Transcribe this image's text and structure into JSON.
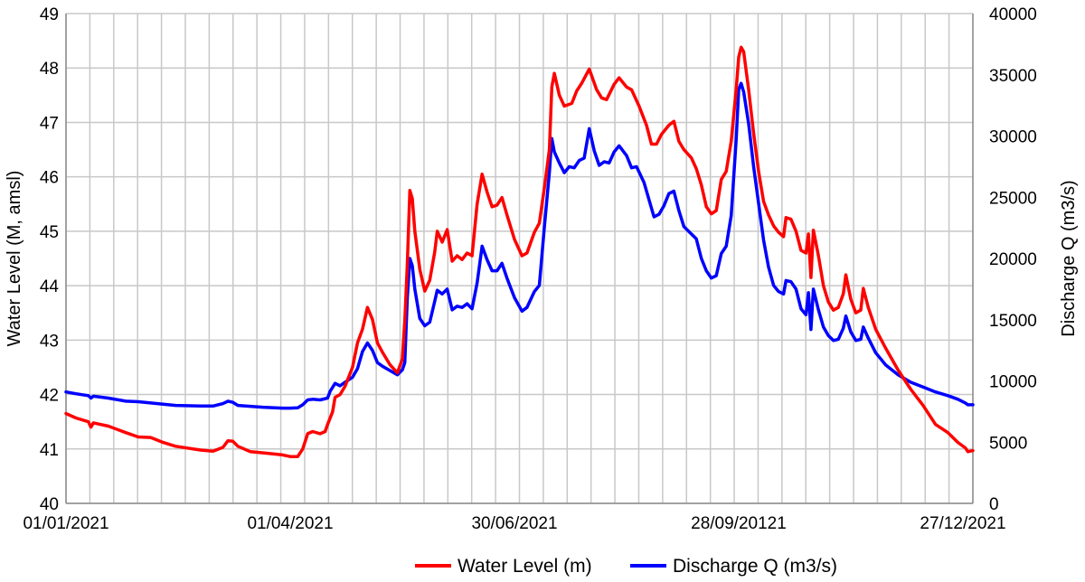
{
  "chart_data": {
    "type": "line",
    "title": "",
    "ylabel": "Water Level (M, amsl)",
    "y2label": "Discharge Q (m3/s)",
    "ylim": [
      40,
      49
    ],
    "y2lim": [
      0,
      40000
    ],
    "yticks": [
      "40",
      "41",
      "42",
      "43",
      "44",
      "45",
      "46",
      "47",
      "48",
      "49"
    ],
    "y2ticks": [
      "0",
      "5000",
      "10000",
      "15000",
      "20000",
      "25000",
      "30000",
      "35000",
      "40000"
    ],
    "xlim_day": [
      1,
      365
    ],
    "xtick_labels": [
      {
        "day": 1,
        "label": "01/01/2021"
      },
      {
        "day": 91,
        "label": "01/04/2021"
      },
      {
        "day": 181,
        "label": "30/06/2021"
      },
      {
        "day": 271,
        "label": "28/09/20121"
      },
      {
        "day": 361,
        "label": "27/12/2021"
      }
    ],
    "grid": true,
    "legend_position": "bottom",
    "series": [
      {
        "name": "Water Level (m)",
        "axis": "left",
        "color": "#ff0000",
        "points": [
          [
            1,
            41.65
          ],
          [
            5,
            41.57
          ],
          [
            10,
            41.5
          ],
          [
            11,
            41.4
          ],
          [
            12,
            41.48
          ],
          [
            18,
            41.42
          ],
          [
            25,
            41.3
          ],
          [
            30,
            41.22
          ],
          [
            35,
            41.21
          ],
          [
            40,
            41.12
          ],
          [
            45,
            41.05
          ],
          [
            55,
            40.98
          ],
          [
            60,
            40.96
          ],
          [
            64,
            41.03
          ],
          [
            66,
            41.15
          ],
          [
            68,
            41.14
          ],
          [
            70,
            41.05
          ],
          [
            75,
            40.95
          ],
          [
            82,
            40.92
          ],
          [
            88,
            40.89
          ],
          [
            91,
            40.86
          ],
          [
            94,
            40.86
          ],
          [
            96,
            41.0
          ],
          [
            98,
            41.28
          ],
          [
            100,
            41.32
          ],
          [
            103,
            41.28
          ],
          [
            105,
            41.32
          ],
          [
            106,
            41.45
          ],
          [
            108,
            41.68
          ],
          [
            109,
            41.95
          ],
          [
            111,
            42.0
          ],
          [
            113,
            42.15
          ],
          [
            116,
            42.5
          ],
          [
            118,
            42.95
          ],
          [
            120,
            43.2
          ],
          [
            122,
            43.6
          ],
          [
            124,
            43.38
          ],
          [
            126,
            42.95
          ],
          [
            128,
            42.78
          ],
          [
            131,
            42.55
          ],
          [
            134,
            42.4
          ],
          [
            136,
            42.65
          ],
          [
            137,
            43.35
          ],
          [
            138,
            44.4
          ],
          [
            139,
            45.75
          ],
          [
            140,
            45.6
          ],
          [
            141,
            45.0
          ],
          [
            143,
            44.3
          ],
          [
            145,
            43.9
          ],
          [
            147,
            44.1
          ],
          [
            149,
            44.62
          ],
          [
            150,
            45.0
          ],
          [
            152,
            44.8
          ],
          [
            154,
            45.03
          ],
          [
            156,
            44.45
          ],
          [
            158,
            44.55
          ],
          [
            160,
            44.48
          ],
          [
            162,
            44.6
          ],
          [
            164,
            44.55
          ],
          [
            166,
            45.5
          ],
          [
            168,
            46.05
          ],
          [
            170,
            45.72
          ],
          [
            172,
            45.45
          ],
          [
            174,
            45.48
          ],
          [
            176,
            45.62
          ],
          [
            178,
            45.3
          ],
          [
            181,
            44.85
          ],
          [
            184,
            44.55
          ],
          [
            186,
            44.6
          ],
          [
            189,
            44.98
          ],
          [
            191,
            45.15
          ],
          [
            193,
            45.8
          ],
          [
            195,
            46.5
          ],
          [
            196,
            47.65
          ],
          [
            197,
            47.9
          ],
          [
            199,
            47.5
          ],
          [
            201,
            47.3
          ],
          [
            204,
            47.35
          ],
          [
            206,
            47.58
          ],
          [
            208,
            47.72
          ],
          [
            211,
            47.98
          ],
          [
            214,
            47.6
          ],
          [
            216,
            47.45
          ],
          [
            218,
            47.42
          ],
          [
            221,
            47.7
          ],
          [
            223,
            47.82
          ],
          [
            226,
            47.65
          ],
          [
            228,
            47.6
          ],
          [
            231,
            47.3
          ],
          [
            234,
            46.95
          ],
          [
            236,
            46.6
          ],
          [
            238,
            46.6
          ],
          [
            240,
            46.78
          ],
          [
            243,
            46.95
          ],
          [
            245,
            47.02
          ],
          [
            247,
            46.65
          ],
          [
            249,
            46.5
          ],
          [
            252,
            46.35
          ],
          [
            254,
            46.15
          ],
          [
            256,
            45.85
          ],
          [
            258,
            45.45
          ],
          [
            260,
            45.32
          ],
          [
            262,
            45.38
          ],
          [
            264,
            45.95
          ],
          [
            266,
            46.1
          ],
          [
            268,
            46.65
          ],
          [
            270,
            47.6
          ],
          [
            271,
            48.2
          ],
          [
            272,
            48.38
          ],
          [
            273,
            48.3
          ],
          [
            275,
            47.6
          ],
          [
            277,
            46.8
          ],
          [
            279,
            46.1
          ],
          [
            281,
            45.55
          ],
          [
            283,
            45.3
          ],
          [
            285,
            45.1
          ],
          [
            287,
            44.98
          ],
          [
            289,
            44.9
          ],
          [
            290,
            45.25
          ],
          [
            292,
            45.22
          ],
          [
            294,
            45.0
          ],
          [
            296,
            44.65
          ],
          [
            298,
            44.6
          ],
          [
            299,
            44.95
          ],
          [
            300,
            44.15
          ],
          [
            301,
            45.02
          ],
          [
            303,
            44.55
          ],
          [
            305,
            44.0
          ],
          [
            307,
            43.7
          ],
          [
            309,
            43.55
          ],
          [
            311,
            43.6
          ],
          [
            313,
            43.85
          ],
          [
            314,
            44.2
          ],
          [
            316,
            43.75
          ],
          [
            318,
            43.5
          ],
          [
            320,
            43.55
          ],
          [
            321,
            43.95
          ],
          [
            323,
            43.6
          ],
          [
            326,
            43.2
          ],
          [
            330,
            42.85
          ],
          [
            335,
            42.45
          ],
          [
            340,
            42.1
          ],
          [
            345,
            41.8
          ],
          [
            350,
            41.45
          ],
          [
            355,
            41.3
          ],
          [
            359,
            41.12
          ],
          [
            362,
            41.02
          ],
          [
            363,
            40.95
          ],
          [
            365,
            40.97
          ]
        ]
      },
      {
        "name": "Discharge Q (m3/s)",
        "axis": "right",
        "color": "#0000ff",
        "points": [
          [
            1,
            9100
          ],
          [
            5,
            8950
          ],
          [
            10,
            8800
          ],
          [
            11,
            8600
          ],
          [
            12,
            8750
          ],
          [
            18,
            8600
          ],
          [
            25,
            8350
          ],
          [
            30,
            8300
          ],
          [
            35,
            8200
          ],
          [
            40,
            8100
          ],
          [
            45,
            8000
          ],
          [
            55,
            7950
          ],
          [
            60,
            7950
          ],
          [
            64,
            8150
          ],
          [
            66,
            8350
          ],
          [
            68,
            8250
          ],
          [
            70,
            8000
          ],
          [
            80,
            7850
          ],
          [
            88,
            7780
          ],
          [
            91,
            7780
          ],
          [
            94,
            7800
          ],
          [
            96,
            8050
          ],
          [
            98,
            8450
          ],
          [
            100,
            8500
          ],
          [
            103,
            8450
          ],
          [
            106,
            8600
          ],
          [
            107,
            9150
          ],
          [
            109,
            9800
          ],
          [
            111,
            9600
          ],
          [
            113,
            9900
          ],
          [
            116,
            10300
          ],
          [
            118,
            11000
          ],
          [
            120,
            12400
          ],
          [
            122,
            13100
          ],
          [
            124,
            12500
          ],
          [
            126,
            11500
          ],
          [
            128,
            11200
          ],
          [
            131,
            10850
          ],
          [
            134,
            10500
          ],
          [
            136,
            10900
          ],
          [
            137,
            11500
          ],
          [
            138,
            16800
          ],
          [
            139,
            20000
          ],
          [
            140,
            19400
          ],
          [
            141,
            17500
          ],
          [
            143,
            15100
          ],
          [
            145,
            14500
          ],
          [
            147,
            14800
          ],
          [
            149,
            16500
          ],
          [
            150,
            17400
          ],
          [
            152,
            17100
          ],
          [
            154,
            17500
          ],
          [
            156,
            15800
          ],
          [
            158,
            16100
          ],
          [
            160,
            16000
          ],
          [
            162,
            16300
          ],
          [
            164,
            15900
          ],
          [
            166,
            18000
          ],
          [
            168,
            21000
          ],
          [
            170,
            19900
          ],
          [
            172,
            19000
          ],
          [
            174,
            19000
          ],
          [
            176,
            19600
          ],
          [
            178,
            18400
          ],
          [
            181,
            16800
          ],
          [
            184,
            15700
          ],
          [
            186,
            16000
          ],
          [
            189,
            17300
          ],
          [
            191,
            17800
          ],
          [
            193,
            22600
          ],
          [
            195,
            27000
          ],
          [
            196,
            29800
          ],
          [
            197,
            28700
          ],
          [
            199,
            27800
          ],
          [
            201,
            27000
          ],
          [
            203,
            27500
          ],
          [
            205,
            27400
          ],
          [
            207,
            28000
          ],
          [
            209,
            28200
          ],
          [
            211,
            30600
          ],
          [
            213,
            28800
          ],
          [
            215,
            27600
          ],
          [
            217,
            27900
          ],
          [
            219,
            27800
          ],
          [
            221,
            28700
          ],
          [
            223,
            29200
          ],
          [
            226,
            28400
          ],
          [
            228,
            27400
          ],
          [
            230,
            27500
          ],
          [
            233,
            26200
          ],
          [
            235,
            24800
          ],
          [
            237,
            23400
          ],
          [
            239,
            23600
          ],
          [
            241,
            24300
          ],
          [
            243,
            25300
          ],
          [
            245,
            25500
          ],
          [
            247,
            23900
          ],
          [
            249,
            22600
          ],
          [
            252,
            22000
          ],
          [
            254,
            21600
          ],
          [
            256,
            20000
          ],
          [
            258,
            19000
          ],
          [
            260,
            18400
          ],
          [
            262,
            18600
          ],
          [
            264,
            20400
          ],
          [
            266,
            21000
          ],
          [
            268,
            23500
          ],
          [
            270,
            29700
          ],
          [
            271,
            33800
          ],
          [
            272,
            34300
          ],
          [
            273,
            33600
          ],
          [
            275,
            31000
          ],
          [
            277,
            27500
          ],
          [
            279,
            24500
          ],
          [
            281,
            21500
          ],
          [
            283,
            19300
          ],
          [
            285,
            17800
          ],
          [
            287,
            17300
          ],
          [
            289,
            17100
          ],
          [
            290,
            18200
          ],
          [
            292,
            18100
          ],
          [
            294,
            17500
          ],
          [
            296,
            15900
          ],
          [
            298,
            15400
          ],
          [
            299,
            17200
          ],
          [
            300,
            14200
          ],
          [
            301,
            17500
          ],
          [
            303,
            15800
          ],
          [
            305,
            14400
          ],
          [
            307,
            13700
          ],
          [
            309,
            13300
          ],
          [
            311,
            13400
          ],
          [
            313,
            14300
          ],
          [
            314,
            15300
          ],
          [
            316,
            14000
          ],
          [
            318,
            13300
          ],
          [
            320,
            13400
          ],
          [
            321,
            14400
          ],
          [
            323,
            13500
          ],
          [
            326,
            12300
          ],
          [
            330,
            11300
          ],
          [
            335,
            10500
          ],
          [
            340,
            9900
          ],
          [
            345,
            9500
          ],
          [
            350,
            9100
          ],
          [
            355,
            8800
          ],
          [
            359,
            8500
          ],
          [
            362,
            8200
          ],
          [
            363,
            8050
          ],
          [
            365,
            8050
          ]
        ]
      }
    ]
  }
}
